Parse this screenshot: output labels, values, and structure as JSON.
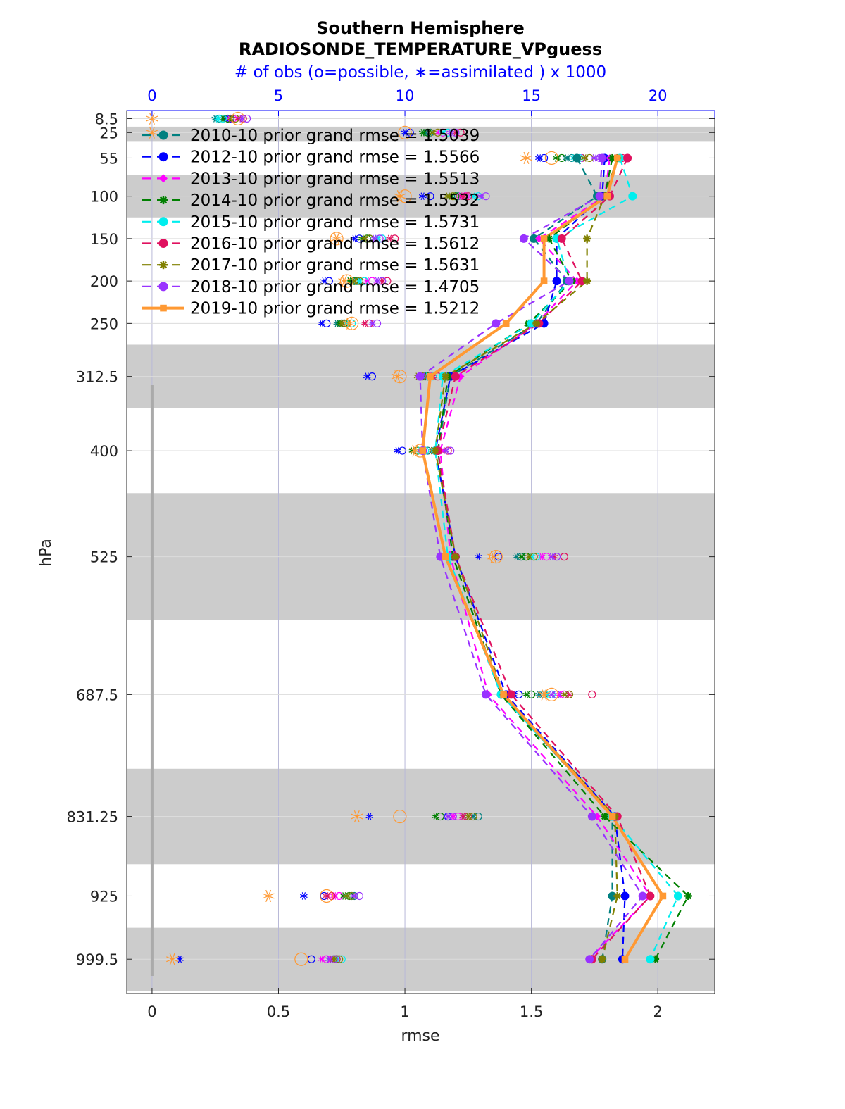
{
  "chart_data": {
    "type": "line",
    "title": "Southern Hemisphere",
    "subtitle": "RADIOSONDE_TEMPERATURE_VPguess",
    "top_axis_label": "# of obs (o=possible, ∗=assimilated ) x 1000",
    "xlabel": "rmse",
    "ylabel": "hPa",
    "xlim": [
      -0.1,
      2.225
    ],
    "xticks": [
      0,
      0.5,
      1,
      1.5,
      2
    ],
    "xtick_labels": [
      "0",
      "0.5",
      "1",
      "1.5",
      "2"
    ],
    "top_xlim": [
      0,
      22
    ],
    "top_xticks": [
      0,
      5,
      10,
      15,
      20
    ],
    "top_xtick_labels": [
      "0",
      "5",
      "10",
      "15",
      "20"
    ],
    "ylim": [
      1040,
      -1
    ],
    "levels": [
      8.5,
      25,
      55,
      100,
      150,
      200,
      250,
      312.5,
      400,
      525,
      687.5,
      831.25,
      925,
      999.5
    ],
    "level_labels": [
      "8.5",
      "25",
      "55",
      "100",
      "150",
      "200",
      "250",
      "312.5",
      "400",
      "525",
      "687.5",
      "831.25",
      "925",
      "999.5"
    ],
    "layer_bands": [
      [
        18,
        35
      ],
      [
        75,
        125
      ],
      [
        275,
        350
      ],
      [
        450,
        600
      ],
      [
        775,
        887.5
      ],
      [
        962.5,
        1037
      ]
    ],
    "grid": true,
    "legend_position": "top-left",
    "series": [
      {
        "name": "2010-10 prior grand rmse = 1.5039",
        "color": "#008080",
        "style": "dashed",
        "marker": "circle",
        "rmse": [
          null,
          null,
          1.68,
          1.76,
          1.51,
          1.64,
          1.52,
          1.18,
          1.13,
          1.19,
          1.38,
          1.82,
          1.82,
          1.78
        ],
        "obs_possible": [
          2.65,
          11.0,
          16.6,
          12.1,
          8.6,
          8.1,
          7.5,
          10.8,
          10.9,
          14.6,
          15.5,
          12.9,
          8.0,
          7.2
        ],
        "obs_assim": [
          2.5,
          10.8,
          16.4,
          11.8,
          8.4,
          7.9,
          7.3,
          10.6,
          10.7,
          14.4,
          15.3,
          12.7,
          7.7,
          7.0
        ]
      },
      {
        "name": "2012-10 prior grand rmse = 1.5566",
        "color": "#0000ff",
        "style": "dashed",
        "marker": "circle",
        "rmse": [
          null,
          null,
          1.79,
          1.78,
          1.6,
          1.6,
          1.55,
          1.18,
          1.12,
          1.2,
          1.4,
          1.83,
          1.87,
          1.86
        ],
        "obs_possible": [
          3.1,
          10.2,
          15.5,
          11.0,
          8.2,
          7.0,
          6.9,
          8.7,
          9.9,
          13.7,
          14.5,
          11.7,
          6.8,
          6.3
        ],
        "obs_assim": [
          2.9,
          10.0,
          15.3,
          10.7,
          8.0,
          6.8,
          6.7,
          8.5,
          9.7,
          12.9,
          14.3,
          8.6,
          6.0,
          1.1
        ]
      },
      {
        "name": "2013-10 prior grand rmse = 1.5513",
        "color": "#ff00ff",
        "style": "dashed",
        "marker": "diamond",
        "rmse": [
          null,
          null,
          1.81,
          1.79,
          1.53,
          1.68,
          1.52,
          1.22,
          1.14,
          1.18,
          1.33,
          1.76,
          1.97,
          1.73
        ],
        "obs_possible": [
          3.2,
          11.5,
          17.0,
          12.4,
          9.1,
          8.7,
          7.7,
          11.0,
          11.3,
          15.6,
          16.3,
          12.1,
          7.4,
          6.9
        ],
        "obs_assim": [
          3.0,
          11.3,
          16.8,
          12.2,
          8.9,
          8.5,
          7.5,
          10.8,
          11.1,
          15.4,
          16.1,
          11.9,
          7.2,
          6.7
        ]
      },
      {
        "name": "2014-10 prior grand rmse = 1.5532",
        "color": "#008000",
        "style": "dashed",
        "marker": "star",
        "rmse": [
          null,
          null,
          1.82,
          1.79,
          1.57,
          1.66,
          1.49,
          1.17,
          1.13,
          1.19,
          1.38,
          1.79,
          2.12,
          1.99
        ],
        "obs_possible": [
          3.0,
          10.9,
          16.2,
          12.0,
          8.5,
          8.0,
          7.6,
          10.9,
          10.5,
          14.8,
          15.0,
          11.4,
          7.8,
          7.3
        ],
        "obs_assim": [
          2.8,
          10.7,
          16.0,
          11.8,
          8.3,
          7.8,
          7.4,
          10.7,
          10.3,
          14.6,
          14.8,
          11.2,
          7.6,
          7.1
        ]
      },
      {
        "name": "2015-10 prior grand rmse = 1.5731",
        "color": "#00eeee",
        "style": "dashed",
        "marker": "circle",
        "rmse": [
          null,
          null,
          1.85,
          1.9,
          1.6,
          1.65,
          1.5,
          1.15,
          1.12,
          1.17,
          1.38,
          1.82,
          2.08,
          1.97
        ],
        "obs_possible": [
          2.8,
          11.7,
          16.9,
          12.9,
          9.1,
          8.4,
          7.9,
          11.1,
          10.8,
          15.2,
          15.8,
          12.5,
          7.9,
          7.5
        ],
        "obs_assim": [
          2.6,
          11.5,
          16.7,
          12.7,
          8.9,
          8.2,
          7.7,
          10.9,
          10.6,
          15.0,
          15.6,
          12.3,
          7.7,
          7.3
        ]
      },
      {
        "name": "2016-10 prior grand rmse = 1.5612",
        "color": "#e0115f",
        "style": "dashed",
        "marker": "circle",
        "rmse": [
          null,
          null,
          1.88,
          1.81,
          1.62,
          1.7,
          1.53,
          1.2,
          1.13,
          1.2,
          1.42,
          1.84,
          1.97,
          1.74
        ],
        "obs_possible": [
          3.6,
          12.2,
          18.6,
          12.5,
          9.6,
          9.3,
          8.6,
          11.3,
          11.7,
          16.3,
          17.4,
          12.5,
          7.1,
          7.3
        ],
        "obs_assim": [
          3.4,
          12.0,
          18.4,
          12.3,
          9.4,
          9.1,
          8.4,
          11.1,
          11.5,
          15.9,
          16.5,
          12.3,
          6.9,
          7.1
        ]
      },
      {
        "name": "2017-10 prior grand rmse = 1.5631",
        "color": "#808000",
        "style": "dashed",
        "marker": "star",
        "rmse": [
          null,
          null,
          1.84,
          1.79,
          1.72,
          1.72,
          1.52,
          1.16,
          1.12,
          1.2,
          1.39,
          1.83,
          1.84,
          1.78
        ],
        "obs_possible": [
          3.3,
          11.3,
          17.3,
          11.9,
          8.6,
          8.2,
          7.7,
          10.7,
          11.3,
          15.1,
          16.5,
          12.7,
          7.9,
          7.4
        ],
        "obs_assim": [
          3.1,
          11.1,
          17.1,
          11.7,
          8.4,
          8.0,
          7.5,
          10.5,
          11.1,
          14.9,
          16.3,
          12.5,
          7.7,
          7.2
        ]
      },
      {
        "name": "2018-10 prior grand rmse = 1.4705",
        "color": "#9933ff",
        "style": "dashed",
        "marker": "circle",
        "rmse": [
          null,
          null,
          1.78,
          1.77,
          1.47,
          1.65,
          1.36,
          1.06,
          1.07,
          1.14,
          1.32,
          1.74,
          1.94,
          1.73
        ],
        "obs_possible": [
          3.75,
          12.0,
          17.7,
          13.2,
          9.0,
          9.1,
          8.9,
          11.7,
          11.8,
          16.0,
          16.0,
          11.9,
          8.2,
          7.2
        ],
        "obs_assim": [
          3.55,
          11.8,
          17.5,
          13.0,
          8.8,
          8.9,
          8.7,
          11.5,
          11.6,
          15.8,
          15.8,
          11.7,
          8.0,
          7.0
        ]
      },
      {
        "name": "2019-10 prior grand rmse = 1.5212",
        "color": "#ff9933",
        "style": "solid",
        "marker": "square",
        "rmse": [
          null,
          null,
          1.84,
          1.8,
          1.55,
          1.55,
          1.4,
          1.1,
          1.07,
          1.16,
          1.39,
          1.82,
          2.02,
          1.87
        ],
        "obs_possible": [
          3.4,
          10.0,
          15.8,
          10.0,
          7.3,
          7.7,
          7.9,
          9.8,
          10.6,
          13.6,
          15.8,
          9.8,
          6.9,
          5.9
        ],
        "obs_assim": [
          0.0,
          0.0,
          14.8,
          9.8,
          7.3,
          7.6,
          7.8,
          9.7,
          10.4,
          13.5,
          15.5,
          8.1,
          4.6,
          0.8
        ]
      }
    ]
  }
}
